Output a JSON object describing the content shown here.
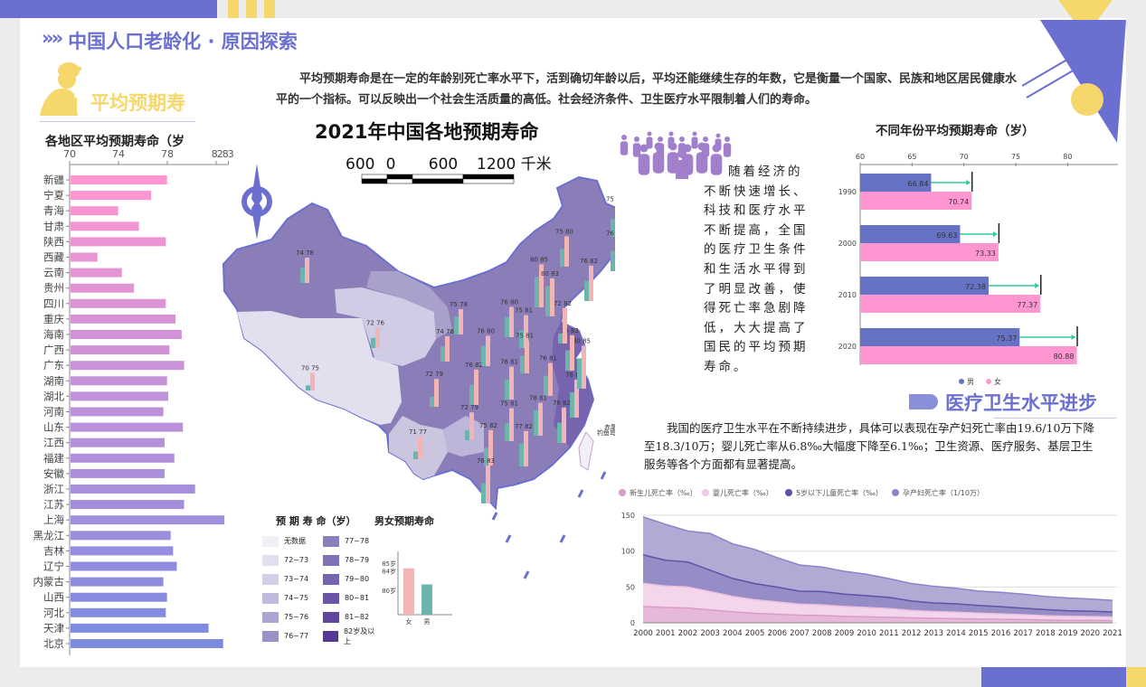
{
  "header": {
    "chevrons": "»»",
    "title": "中国人口老龄化 · 原因探索"
  },
  "section_life": {
    "title": "平均预期寿"
  },
  "intro_text": "平均预期寿命是在一定的年龄别死亡率水平下，活到确切年龄以后，平均还能继续生存的年数，它是衡量一个国家、民族和地区居民健康水平的一个指标。可以反映出一个社会生活质量的高低。社会经济条件、卫生医疗水平限制着人们的寿命。",
  "side_text": "随着经济的不断快速增长、科技和医疗水平不断提高，全国的医疗卫生条件和生活水平得到了明显改善，使得死亡率急剧降低，大大提高了国民的平均预期寿命。",
  "section_medical": {
    "title": "医疗卫生水平进步",
    "text": "我国的医疗卫生水平在不断持续进步，具体可以表现在孕产妇死亡率由19.6/10万下降至18.3/10万；婴儿死亡率从6.8‰大幅度下降至6.1‰；卫生资源、医疗服务、基层卫生服务等各个方面都有显著提高。"
  },
  "map": {
    "title": "2021年中国各地预期寿命",
    "scale_labels": [
      "600",
      "0",
      "600",
      "1200 千米"
    ],
    "island_labels": [
      "钓鱼岛",
      "赤尾屿"
    ],
    "legend_title": "预 期 寿 命（岁）",
    "legend": [
      {
        "label": "无数据",
        "color": "#f1eff7"
      },
      {
        "label": "72~73",
        "color": "#e2dfef"
      },
      {
        "label": "73~74",
        "color": "#d3cfe6"
      },
      {
        "label": "74~75",
        "color": "#c0bade"
      },
      {
        "label": "75~76",
        "color": "#aca5d2"
      },
      {
        "label": "76~77",
        "color": "#9a91c7"
      },
      {
        "label": "77~78",
        "color": "#8b80bd"
      },
      {
        "label": "78~79",
        "color": "#8172b7"
      },
      {
        "label": "79~80",
        "color": "#7664b0"
      },
      {
        "label": "80~81",
        "color": "#6b55a7"
      },
      {
        "label": "81~82",
        "color": "#61469f"
      },
      {
        "label": "82岁及以上",
        "color": "#553894"
      }
    ],
    "bar_colors": {
      "male": "#6db3ae",
      "female": "#f2b5b5"
    },
    "province_pairs": [
      [
        74,
        78
      ],
      [
        72,
        76
      ],
      [
        70,
        75
      ],
      [
        75,
        78
      ],
      [
        74,
        78
      ],
      [
        72,
        79
      ],
      [
        71,
        77
      ],
      [
        72,
        79
      ],
      [
        76,
        82
      ],
      [
        76,
        80
      ],
      [
        75,
        82
      ],
      [
        76,
        83
      ],
      [
        76,
        81
      ],
      [
        75,
        81
      ],
      [
        77,
        82
      ],
      [
        76,
        80
      ],
      [
        75,
        81
      ],
      [
        75,
        81
      ],
      [
        76,
        81
      ],
      [
        78,
        81
      ],
      [
        76,
        82
      ],
      [
        78,
        83
      ],
      [
        80,
        85
      ],
      [
        76,
        82
      ],
      [
        72,
        82
      ],
      [
        80,
        85
      ],
      [
        80,
        83
      ],
      [
        75,
        80
      ],
      [
        76,
        82
      ],
      [
        75,
        81
      ],
      [
        76,
        81
      ]
    ],
    "gender_chart": {
      "title": "男女预期寿命",
      "ticks": [
        "85岁",
        "84岁",
        "80岁"
      ],
      "categories": [
        "女",
        "男"
      ],
      "values": [
        84.5,
        81.2
      ]
    }
  },
  "chart_data": [
    {
      "type": "bar",
      "title": "各地区平均预期寿命（岁",
      "orientation": "horizontal",
      "xlim": [
        70,
        83
      ],
      "ticks": [
        "70",
        "74",
        "78",
        "82",
        "83"
      ],
      "categories": [
        "新疆",
        "宁夏",
        "青海",
        "甘肃",
        "陕西",
        "西藏",
        "云南",
        "贵州",
        "四川",
        "重庆",
        "海南",
        "广西",
        "广东",
        "湖南",
        "湖北",
        "河南",
        "山东",
        "江西",
        "福建",
        "安徽",
        "浙江",
        "江苏",
        "上海",
        "黑龙江",
        "吉林",
        "辽宁",
        "内蒙古",
        "山西",
        "河北",
        "天津",
        "北京"
      ],
      "values": [
        77.9,
        76.6,
        73.9,
        75.6,
        77.8,
        72.2,
        74.2,
        75.2,
        77.8,
        78.6,
        79.1,
        78.1,
        79.3,
        77.9,
        78.0,
        77.6,
        79.2,
        77.7,
        78.5,
        77.7,
        80.2,
        79.3,
        82.6,
        78.2,
        78.4,
        78.7,
        77.6,
        77.9,
        77.8,
        81.3,
        82.5
      ],
      "colors": [
        "#ff96d2",
        "#7b8be0"
      ]
    },
    {
      "type": "bar",
      "title": "不同年份平均预期寿命（岁）",
      "orientation": "horizontal",
      "xlim": [
        60,
        85
      ],
      "ticks": [
        "60",
        "65",
        "70",
        "75",
        "80"
      ],
      "categories": [
        "1990",
        "2000",
        "2010",
        "2020"
      ],
      "series": [
        {
          "name": "男",
          "values": [
            66.84,
            69.63,
            72.38,
            75.37
          ],
          "color": "#6673c4"
        },
        {
          "name": "女",
          "values": [
            70.74,
            73.33,
            77.37,
            80.88
          ],
          "color": "#ff96d2"
        }
      ],
      "arrow_color": "#2ecc9a",
      "legend": "bottom"
    },
    {
      "type": "area",
      "stacked": true,
      "legend": "top",
      "ylim": [
        0,
        150
      ],
      "yticks": [
        "0",
        "50",
        "100",
        "150"
      ],
      "x": [
        "2000",
        "2001",
        "2002",
        "2003",
        "2004",
        "2005",
        "2006",
        "2007",
        "2008",
        "2009",
        "2010",
        "2011",
        "2012",
        "2013",
        "2014",
        "2015",
        "2016",
        "2017",
        "2018",
        "2019",
        "2020",
        "2021"
      ],
      "series": [
        {
          "name": "新生儿死亡率（‰）",
          "color": "#d99cc8",
          "values": [
            22.8,
            21.4,
            20.7,
            18.0,
            15.4,
            13.2,
            12.0,
            10.7,
            10.2,
            9.0,
            8.3,
            7.8,
            6.9,
            6.3,
            5.9,
            5.4,
            4.9,
            4.5,
            3.9,
            3.5,
            3.4,
            3.1
          ]
        },
        {
          "name": "婴儿死亡率（‰）",
          "color": "#f3c8e6",
          "values": [
            32.2,
            30.0,
            29.2,
            25.5,
            21.5,
            19.0,
            17.2,
            15.3,
            14.9,
            13.8,
            13.1,
            12.1,
            10.3,
            9.5,
            8.9,
            8.1,
            7.5,
            6.8,
            6.1,
            5.6,
            5.4,
            5.0
          ]
        },
        {
          "name": "5岁以下儿童死亡率（‰）",
          "color": "#5b50a8",
          "values": [
            39.7,
            35.9,
            34.9,
            29.9,
            25.0,
            22.5,
            20.6,
            18.1,
            18.5,
            17.2,
            16.4,
            15.6,
            13.2,
            12.0,
            11.7,
            10.7,
            10.2,
            9.1,
            8.4,
            7.8,
            7.5,
            7.1
          ]
        },
        {
          "name": "孕产妇死亡率（1/10万）",
          "color": "#8c84c8",
          "values": [
            53.0,
            50.2,
            43.2,
            51.3,
            48.3,
            47.7,
            41.1,
            36.6,
            34.2,
            31.9,
            30.0,
            26.1,
            24.5,
            23.2,
            21.7,
            20.1,
            19.9,
            19.6,
            18.3,
            17.8,
            16.9,
            16.1
          ]
        }
      ]
    }
  ]
}
